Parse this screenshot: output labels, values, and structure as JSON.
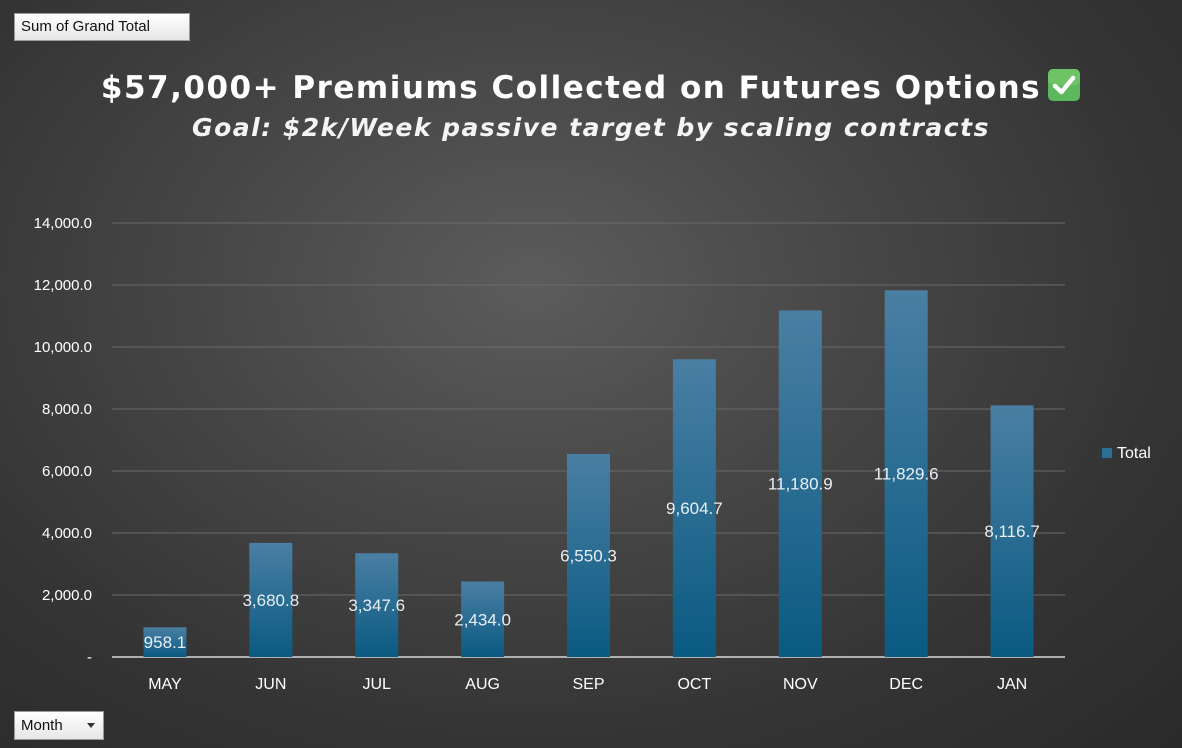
{
  "pivot": {
    "values_field": "Sum of Grand Total",
    "axis_field": "Month"
  },
  "colors": {
    "bar_top": "#4a7fa3",
    "bar_bottom": "#0a5a82",
    "gridline": "#6a6a6a",
    "axis": "#d8d8d8"
  },
  "chart_data": {
    "type": "bar",
    "title": "$57,000+ Premiums Collected on Futures Options",
    "title_icon": "check-mark-icon",
    "subtitle": "Goal: $2k/Week passive target by scaling contracts",
    "categories": [
      "MAY",
      "JUN",
      "JUL",
      "AUG",
      "SEP",
      "OCT",
      "NOV",
      "DEC",
      "JAN"
    ],
    "series": [
      {
        "name": "Total",
        "values": [
          958.1,
          3680.8,
          3347.6,
          2434.0,
          6550.3,
          9604.7,
          11180.9,
          11829.6,
          8116.7
        ],
        "labels": [
          "958.1",
          "3,680.8",
          "3,347.6",
          "2,434.0",
          "6,550.3",
          "9,604.7",
          "11,180.9",
          "11,829.6",
          "8,116.7"
        ]
      }
    ],
    "ylim": [
      0,
      14000
    ],
    "yticks": [
      0,
      2000,
      4000,
      6000,
      8000,
      10000,
      12000,
      14000
    ],
    "ytick_labels": [
      "-",
      "2,000.0",
      "4,000.0",
      "6,000.0",
      "8,000.0",
      "10,000.0",
      "12,000.0",
      "14,000.0"
    ],
    "grid": true,
    "legend": {
      "position": "right",
      "entries": [
        "Total"
      ]
    },
    "data_label_position": "center"
  }
}
